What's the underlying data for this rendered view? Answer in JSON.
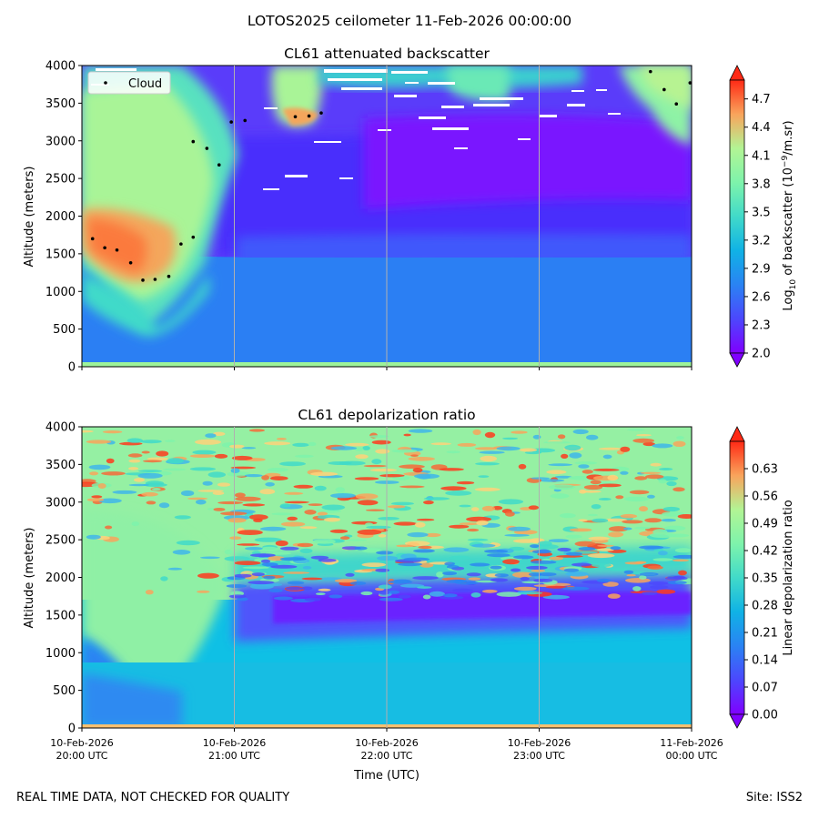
{
  "figure": {
    "suptitle": "LOTOS2025 ceilometer 11-Feb-2026 00:00:00",
    "footer_left": "REAL TIME DATA, NOT CHECKED FOR QUALITY",
    "footer_right": "Site: ISS2"
  },
  "chart_data": [
    {
      "type": "heatmap",
      "title": "CL61 attenuated backscatter",
      "ylabel": "Altitude (meters)",
      "xlabel": "",
      "ylim": [
        0,
        4000
      ],
      "yticks": [
        0,
        500,
        1000,
        1500,
        2000,
        2500,
        3000,
        3500,
        4000
      ],
      "xticks": [
        "10-Feb-2026\n20:00 UTC",
        "10-Feb-2026\n21:00 UTC",
        "10-Feb-2026\n22:00 UTC",
        "10-Feb-2026\n23:00 UTC",
        "11-Feb-2026\n00:00 UTC"
      ],
      "xtick_labels_shown": false,
      "x_range_hours": [
        20,
        24
      ],
      "grid": "vertical lines at hourly ticks",
      "colormap": "rainbow",
      "colorbar": {
        "label": "Log10 of backscatter (10^-9/m.sr)",
        "range": [
          2.0,
          4.9
        ],
        "ticks": [
          "2.0",
          "2.3",
          "2.6",
          "2.9",
          "3.2",
          "3.5",
          "3.8",
          "4.1",
          "4.4",
          "4.7"
        ],
        "extend": "both"
      },
      "legend": {
        "placement": "top-left",
        "entries": [
          "Cloud"
        ]
      },
      "series": [
        {
          "name": "Cloud",
          "marker": "point",
          "color": "#000000",
          "points": [
            {
              "t": 20.07,
              "alt": 1700
            },
            {
              "t": 20.15,
              "alt": 1580
            },
            {
              "t": 20.23,
              "alt": 1550
            },
            {
              "t": 20.32,
              "alt": 1380
            },
            {
              "t": 20.4,
              "alt": 1150
            },
            {
              "t": 20.48,
              "alt": 1160
            },
            {
              "t": 20.57,
              "alt": 1200
            },
            {
              "t": 20.65,
              "alt": 1630
            },
            {
              "t": 20.73,
              "alt": 1720
            },
            {
              "t": 20.73,
              "alt": 2990
            },
            {
              "t": 20.82,
              "alt": 2900
            },
            {
              "t": 20.9,
              "alt": 2680
            },
            {
              "t": 20.98,
              "alt": 3250
            },
            {
              "t": 21.07,
              "alt": 3270
            },
            {
              "t": 21.4,
              "alt": 3320
            },
            {
              "t": 21.49,
              "alt": 3330
            },
            {
              "t": 21.57,
              "alt": 3370
            },
            {
              "t": 23.73,
              "alt": 3920
            },
            {
              "t": 23.82,
              "alt": 3680
            },
            {
              "t": 23.9,
              "alt": 3490
            },
            {
              "t": 23.99,
              "alt": 3770
            }
          ]
        }
      ]
    },
    {
      "type": "heatmap",
      "title": "CL61 depolarization ratio",
      "ylabel": "Altitude (meters)",
      "xlabel": "Time (UTC)",
      "ylim": [
        0,
        4000
      ],
      "yticks": [
        0,
        500,
        1000,
        1500,
        2000,
        2500,
        3000,
        3500,
        4000
      ],
      "xticks": [
        "10-Feb-2026\n20:00 UTC",
        "10-Feb-2026\n21:00 UTC",
        "10-Feb-2026\n22:00 UTC",
        "10-Feb-2026\n23:00 UTC",
        "11-Feb-2026\n00:00 UTC"
      ],
      "x_range_hours": [
        20,
        24
      ],
      "grid": "vertical lines at hourly ticks",
      "colormap": "rainbow",
      "colorbar": {
        "label": "Linear depolarization ratio",
        "range": [
          0.0,
          0.7
        ],
        "ticks": [
          "0.00",
          "0.07",
          "0.14",
          "0.21",
          "0.28",
          "0.35",
          "0.42",
          "0.49",
          "0.56",
          "0.63"
        ],
        "extend": "both"
      }
    }
  ]
}
